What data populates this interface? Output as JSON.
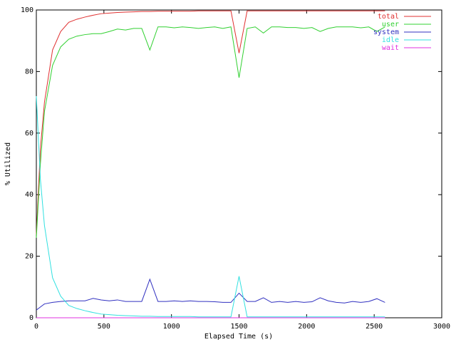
{
  "chart_data": {
    "type": "line",
    "xlabel": "Elapsed Time (s)",
    "ylabel": "% Utilized",
    "x": [
      0,
      30,
      60,
      120,
      180,
      240,
      300,
      360,
      420,
      480,
      540,
      600,
      660,
      720,
      780,
      840,
      900,
      960,
      1020,
      1080,
      1140,
      1200,
      1260,
      1320,
      1380,
      1440,
      1500,
      1560,
      1620,
      1680,
      1740,
      1800,
      1860,
      1920,
      1980,
      2040,
      2100,
      2160,
      2220,
      2280,
      2340,
      2400,
      2460,
      2520,
      2580
    ],
    "series": [
      {
        "name": "total",
        "color": "#e03030",
        "values": [
          27,
          55,
          70,
          87,
          93,
          96,
          97,
          97.7,
          98.3,
          98.8,
          99,
          99.2,
          99.3,
          99.4,
          99.5,
          99.5,
          99.6,
          99.6,
          99.6,
          99.6,
          99.6,
          99.7,
          99.7,
          99.7,
          99.7,
          99.7,
          86,
          99.7,
          99.7,
          99.7,
          99.7,
          99.7,
          99.7,
          99.7,
          99.7,
          99.7,
          99.7,
          99.7,
          99.7,
          99.7,
          99.7,
          99.7,
          99.7,
          99.7,
          99.7
        ]
      },
      {
        "name": "user",
        "color": "#30d030",
        "values": [
          26,
          50,
          67,
          82,
          88,
          90.5,
          91.5,
          92,
          92.3,
          92.3,
          93,
          93.8,
          93.5,
          94,
          94,
          87,
          94.5,
          94.5,
          94.2,
          94.5,
          94.3,
          94,
          94.3,
          94.5,
          94,
          94.5,
          78,
          94,
          94.5,
          92.5,
          94.5,
          94.5,
          94.3,
          94.3,
          94,
          94.3,
          93,
          94,
          94.5,
          94.5,
          94.5,
          94.2,
          94.5,
          93,
          94.5
        ]
      },
      {
        "name": "system",
        "color": "#3030c0",
        "values": [
          2.5,
          3.5,
          4.5,
          5,
          5.3,
          5.5,
          5.5,
          5.5,
          6.3,
          5.8,
          5.5,
          5.8,
          5.3,
          5.3,
          5.3,
          12.5,
          5.3,
          5.3,
          5.5,
          5.3,
          5.5,
          5.3,
          5.3,
          5.2,
          5,
          5,
          8,
          5.3,
          5.3,
          6.5,
          5,
          5.3,
          5,
          5.3,
          5,
          5.2,
          6.5,
          5.5,
          5,
          4.8,
          5.3,
          5,
          5.3,
          6.2,
          5
        ]
      },
      {
        "name": "idle",
        "color": "#30e0e0",
        "values": [
          72,
          45,
          30,
          13,
          7,
          4,
          3,
          2.3,
          1.7,
          1.2,
          1,
          0.8,
          0.7,
          0.6,
          0.5,
          0.5,
          0.4,
          0.4,
          0.4,
          0.4,
          0.4,
          0.3,
          0.3,
          0.3,
          0.3,
          0.3,
          13.5,
          0.3,
          0.3,
          0.3,
          0.3,
          0.3,
          0.3,
          0.3,
          0.3,
          0.3,
          0.3,
          0.3,
          0.3,
          0.3,
          0.3,
          0.3,
          0.3,
          0.3,
          0.3
        ]
      },
      {
        "name": "wait",
        "color": "#e030e0",
        "values": [
          0,
          0,
          0,
          0,
          0,
          0,
          0,
          0,
          0,
          0,
          0,
          0,
          0,
          0,
          0,
          0,
          0,
          0,
          0,
          0,
          0,
          0,
          0,
          0,
          0,
          0,
          0,
          0,
          0,
          0,
          0,
          0,
          0,
          0,
          0,
          0,
          0,
          0,
          0,
          0,
          0,
          0,
          0,
          0,
          0
        ]
      }
    ],
    "xlim": [
      0,
      3000
    ],
    "xticks": [
      0,
      500,
      1000,
      1500,
      2000,
      2500,
      3000
    ],
    "ylim": [
      0,
      100
    ],
    "yticks": [
      0,
      20,
      40,
      60,
      80,
      100
    ],
    "grid": false,
    "legend": "top-right"
  }
}
